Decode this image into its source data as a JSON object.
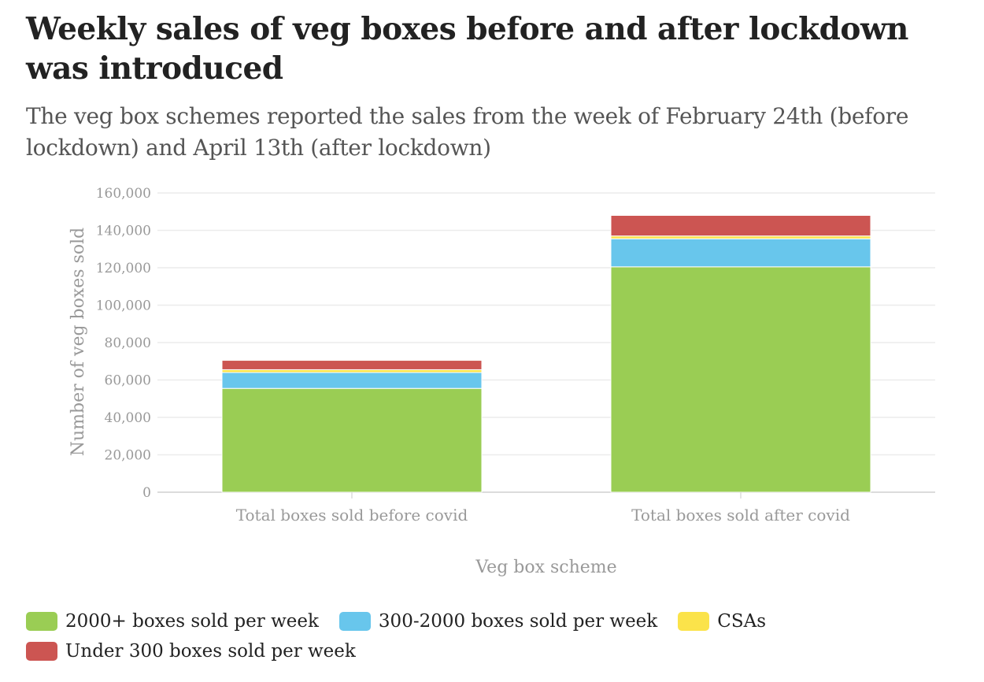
{
  "chart_data": {
    "type": "bar",
    "stacked": true,
    "title": "Weekly sales of veg boxes before and after lockdown was introduced",
    "subtitle": "The veg box schemes reported the sales from the week of February 24th (before lockdown) and April 13th (after lockdown)",
    "xlabel": "Veg box scheme",
    "ylabel": "Number of veg boxes sold",
    "ylim": [
      0,
      160000
    ],
    "yticks": [
      0,
      20000,
      40000,
      60000,
      80000,
      100000,
      120000,
      140000,
      160000
    ],
    "ytick_labels": [
      "0",
      "20,000",
      "40,000",
      "60,000",
      "80,000",
      "100,000",
      "120,000",
      "140,000",
      "160,000"
    ],
    "grid": true,
    "legend_position": "bottom",
    "categories": [
      "Total boxes sold before covid",
      "Total boxes sold after covid"
    ],
    "series": [
      {
        "name": "2000+ boxes sold per week",
        "color": "#9acd54",
        "values": [
          55500,
          120500
        ]
      },
      {
        "name": "300-2000 boxes sold per week",
        "color": "#68c6ec",
        "values": [
          8500,
          15000
        ]
      },
      {
        "name": "CSAs",
        "color": "#fbe34a",
        "values": [
          1500,
          1500
        ]
      },
      {
        "name": "Under 300 boxes sold per week",
        "color": "#cc5552",
        "values": [
          5000,
          11000
        ]
      }
    ]
  }
}
